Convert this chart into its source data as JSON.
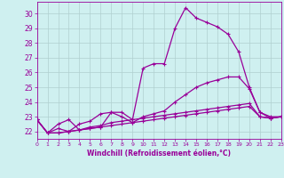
{
  "xlabel": "Windchill (Refroidissement éolien,°C)",
  "xlim": [
    0,
    23
  ],
  "ylim": [
    21.5,
    30.8
  ],
  "yticks": [
    22,
    23,
    24,
    25,
    26,
    27,
    28,
    29,
    30
  ],
  "xticks": [
    0,
    1,
    2,
    3,
    4,
    5,
    6,
    7,
    8,
    9,
    10,
    11,
    12,
    13,
    14,
    15,
    16,
    17,
    18,
    19,
    20,
    21,
    22,
    23
  ],
  "bg_color": "#cff0f0",
  "line_color": "#990099",
  "grid_color": "#b0d0d0",
  "lines": [
    {
      "x": [
        0,
        1,
        2,
        3,
        4,
        5,
        6,
        7,
        8,
        9,
        10,
        11,
        12,
        13,
        14,
        15,
        16,
        17,
        18,
        19,
        20,
        21,
        22,
        23
      ],
      "y": [
        22.8,
        21.9,
        22.5,
        22.8,
        22.1,
        22.2,
        22.3,
        23.3,
        23.3,
        22.8,
        26.3,
        26.6,
        26.6,
        29.0,
        30.4,
        29.7,
        29.4,
        29.1,
        28.6,
        27.4,
        25.0,
        23.3,
        23.0,
        23.0
      ]
    },
    {
      "x": [
        0,
        1,
        2,
        3,
        4,
        5,
        6,
        7,
        8,
        9,
        10,
        11,
        12,
        13,
        14,
        15,
        16,
        17,
        18,
        19,
        20,
        21,
        22,
        23
      ],
      "y": [
        22.8,
        21.9,
        22.2,
        22.0,
        22.5,
        22.7,
        23.2,
        23.3,
        23.0,
        22.6,
        23.0,
        23.2,
        23.4,
        24.0,
        24.5,
        25.0,
        25.3,
        25.5,
        25.7,
        25.7,
        24.9,
        23.3,
        22.9,
        23.0
      ]
    },
    {
      "x": [
        0,
        1,
        2,
        3,
        4,
        5,
        6,
        7,
        8,
        9,
        10,
        11,
        12,
        13,
        14,
        15,
        16,
        17,
        18,
        19,
        20,
        21,
        22,
        23
      ],
      "y": [
        22.8,
        21.9,
        21.9,
        22.0,
        22.1,
        22.3,
        22.4,
        22.6,
        22.7,
        22.8,
        22.9,
        23.0,
        23.1,
        23.2,
        23.3,
        23.4,
        23.5,
        23.6,
        23.7,
        23.8,
        23.9,
        23.0,
        22.9,
        23.0
      ]
    },
    {
      "x": [
        0,
        1,
        2,
        3,
        4,
        5,
        6,
        7,
        8,
        9,
        10,
        11,
        12,
        13,
        14,
        15,
        16,
        17,
        18,
        19,
        20,
        21,
        22,
        23
      ],
      "y": [
        22.8,
        21.9,
        21.9,
        22.0,
        22.1,
        22.2,
        22.3,
        22.4,
        22.5,
        22.6,
        22.7,
        22.8,
        22.9,
        23.0,
        23.1,
        23.2,
        23.3,
        23.4,
        23.5,
        23.6,
        23.7,
        23.0,
        22.9,
        23.0
      ]
    }
  ]
}
